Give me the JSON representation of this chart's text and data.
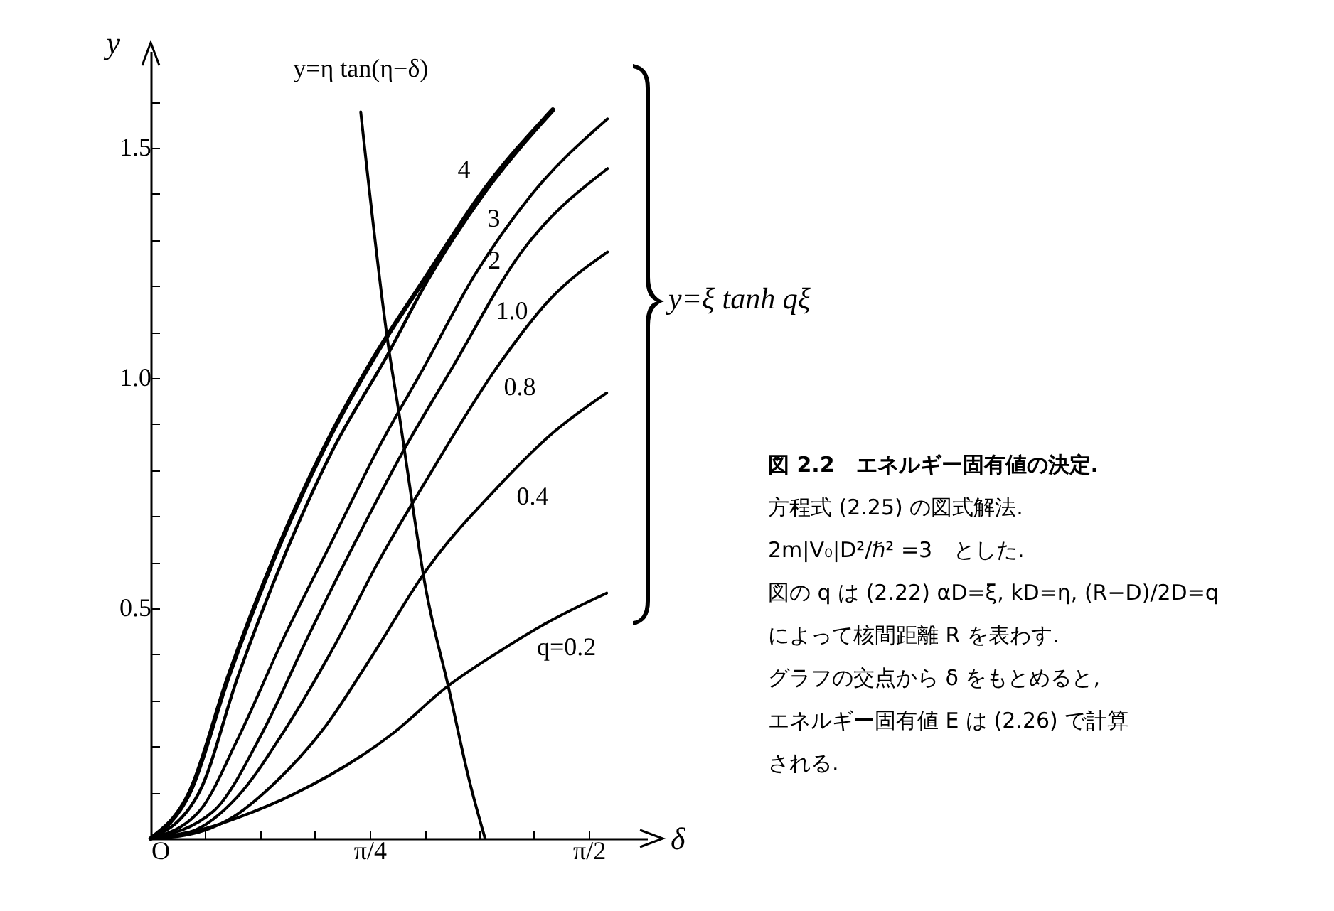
{
  "chart_data": {
    "type": "line",
    "xlabel": "δ",
    "ylabel": "y",
    "xlim": [
      0,
      1.78
    ],
    "ylim": [
      0,
      1.71
    ],
    "xticks": [
      {
        "value": 0,
        "label": "O"
      },
      {
        "value": 0.196,
        "label": null
      },
      {
        "value": 0.393,
        "label": null
      },
      {
        "value": 0.589,
        "label": null
      },
      {
        "value": 0.785,
        "label": "π/4"
      },
      {
        "value": 0.982,
        "label": null
      },
      {
        "value": 1.178,
        "label": null
      },
      {
        "value": 1.374,
        "label": null
      },
      {
        "value": 1.571,
        "label": "π/2"
      }
    ],
    "yticks": [
      {
        "value": 0.1,
        "label": null
      },
      {
        "value": 0.2,
        "label": null
      },
      {
        "value": 0.3,
        "label": null
      },
      {
        "value": 0.4,
        "label": null
      },
      0.5,
      {
        "value": 0.6,
        "label": null
      },
      {
        "value": 0.7,
        "label": null
      },
      {
        "value": 0.8,
        "label": null
      },
      {
        "value": 0.9,
        "label": null
      },
      {
        "value": 1,
        "label": "1.0"
      },
      {
        "value": 1.1,
        "label": null
      },
      {
        "value": 1.2,
        "label": null
      },
      {
        "value": 1.3,
        "label": null
      },
      {
        "value": 1.4,
        "label": null
      },
      1.5,
      {
        "value": 1.6,
        "label": null
      }
    ],
    "series": [
      {
        "name": "4",
        "color": "#000000",
        "x": [
          0,
          0.141,
          0.277,
          0.447,
          0.617,
          0.804,
          0.991,
          1.195,
          1.442
        ],
        "values": [
          0,
          0.102,
          0.349,
          0.616,
          0.842,
          1.048,
          1.223,
          1.408,
          1.583
        ]
      },
      {
        "name": "3",
        "color": "#000000",
        "x": [
          0,
          0.175,
          0.311,
          0.481,
          0.651,
          0.847,
          0.991,
          1.195,
          1.442
        ],
        "values": [
          0,
          0.102,
          0.349,
          0.616,
          0.842,
          1.048,
          1.21,
          1.4,
          1.58
        ]
      },
      {
        "name": "2",
        "color": "#000000",
        "x": [
          0,
          0.175,
          0.311,
          0.481,
          0.651,
          0.821,
          0.974,
          1.161,
          1.365,
          1.638
        ],
        "values": [
          0,
          0.06,
          0.215,
          0.441,
          0.647,
          0.853,
          1.017,
          1.223,
          1.398,
          1.563
        ]
      },
      {
        "name": "1.0",
        "color": "#000000",
        "x": [
          0,
          0.226,
          0.396,
          0.566,
          0.736,
          0.906,
          1.076,
          1.331,
          1.638
        ],
        "values": [
          0,
          0.06,
          0.225,
          0.441,
          0.647,
          0.842,
          1.017,
          1.275,
          1.455
        ]
      },
      {
        "name": "0.8",
        "color": "#000000",
        "x": [
          0,
          0.141,
          0.311,
          0.481,
          0.651,
          0.821,
          0.991,
          1.247,
          1.433,
          1.638
        ],
        "values": [
          0,
          0.014,
          0.091,
          0.236,
          0.41,
          0.606,
          0.781,
          1.028,
          1.172,
          1.274
        ]
      },
      {
        "name": "0.4",
        "color": "#000000",
        "x": [
          0,
          0.141,
          0.277,
          0.447,
          0.617,
          0.787,
          0.991,
          1.247,
          1.44,
          1.635
        ],
        "values": [
          0,
          0.009,
          0.04,
          0.122,
          0.236,
          0.39,
          0.585,
          0.765,
          0.88,
          0.968
        ]
      },
      {
        "name": "q=0.2",
        "color": "#000000",
        "x": [
          0,
          0.209,
          0.311,
          0.515,
          0.872,
          1.059,
          1.247,
          1.44,
          1.635
        ],
        "values": [
          0,
          0.024,
          0.045,
          0.097,
          0.23,
          0.328,
          0.405,
          0.475,
          0.533
        ]
      },
      {
        "name": "y=η tan(η−δ)",
        "color": "#000000",
        "x": [
          0.753,
          0.855,
          0.89,
          0.94,
          0.983,
          1.068,
          1.144,
          1.199
        ],
        "values": [
          1.578,
          1.058,
          0.925,
          0.719,
          0.554,
          0.328,
          0.122,
          0
        ]
      }
    ],
    "annotations": [
      "y=ξ tanh qξ",
      "図 2.2　エネルギー固有値の決定.",
      "方程式 (2.25) の図式解法.",
      "2m|V₀|D²/ℏ² =3　とした.",
      "図の q は (2.22) αD=ξ, kD=η, (R−D)/2D=q",
      "によって核間距離 R を表わす.",
      "グラフの交点から δ をもとめると,",
      "エネルギー固有値 E は (2.26) で計算",
      "される."
    ]
  }
}
